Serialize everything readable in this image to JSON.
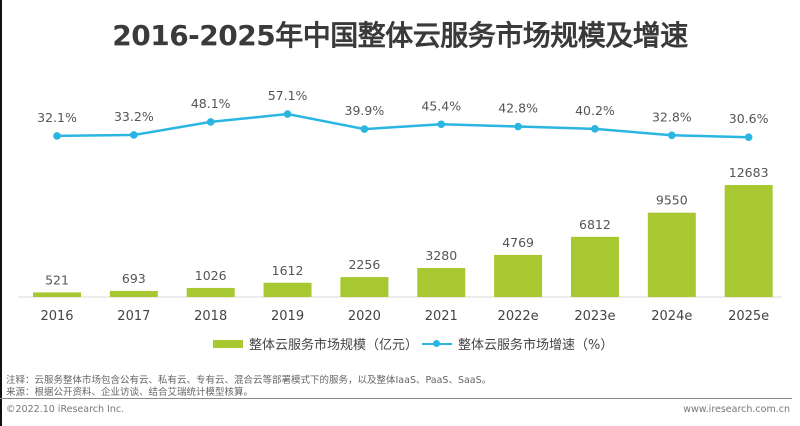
{
  "title": "2016-2025年中国整体云服务市场规模及增速",
  "chart_data": {
    "type": "bar+line",
    "title": "2016-2025年中国整体云服务市场规模及增速",
    "categories": [
      "2016",
      "2017",
      "2018",
      "2019",
      "2020",
      "2021",
      "2022e",
      "2023e",
      "2024e",
      "2025e"
    ],
    "series": [
      {
        "name": "整体云服务市场规模（亿元）",
        "type": "bar",
        "color": "#a8c832",
        "values": [
          521,
          693,
          1026,
          1612,
          2256,
          3280,
          4769,
          6812,
          9550,
          12683
        ],
        "labels": [
          "521",
          "693",
          "1026",
          "1612",
          "2256",
          "3280",
          "4769",
          "6812",
          "9550",
          "12683"
        ]
      },
      {
        "name": "整体云服务市场增速（%）",
        "type": "line",
        "color": "#2bb5e3",
        "values": [
          32.1,
          33.2,
          48.1,
          57.1,
          39.9,
          45.4,
          42.8,
          40.2,
          32.8,
          30.6
        ],
        "labels": [
          "32.1%",
          "33.2%",
          "48.1%",
          "57.1%",
          "39.9%",
          "45.4%",
          "42.8%",
          "40.2%",
          "32.8%",
          "30.6%"
        ]
      }
    ],
    "xlabel": "",
    "ylabel": "",
    "grid": false,
    "legend_position": "bottom"
  },
  "legend": {
    "bar_label": "整体云服务市场规模（亿元）",
    "line_label": "整体云服务市场增速（%）"
  },
  "notes": {
    "note": "注释：云服务整体市场包含公有云、私有云、专有云、混合云等部署模式下的服务，以及整体IaaS、PaaS、SaaS。",
    "source": "来源：根据公开资料、企业访谈、结合艾瑞统计模型核算。"
  },
  "footer": {
    "copyright": "©2022.10 iResearch Inc.",
    "website": "www.iresearch.com.cn"
  }
}
